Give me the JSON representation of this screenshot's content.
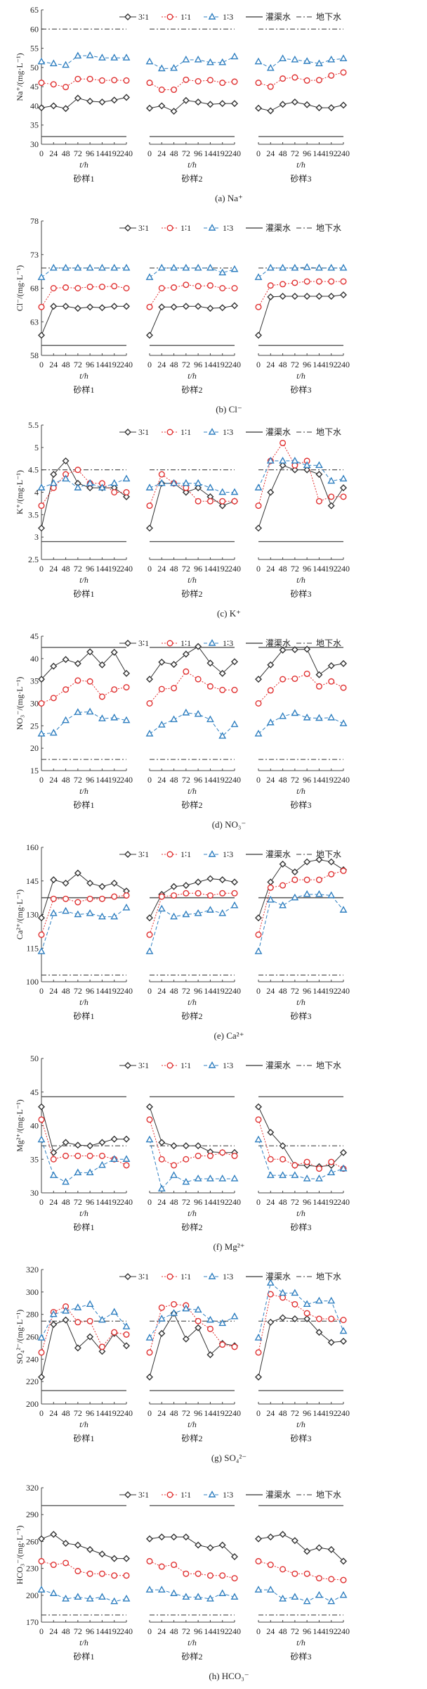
{
  "chart_data": {
    "type": "line",
    "legend": {
      "placement": "top",
      "entries": [
        "3∶1",
        "1∶1",
        "1∶3",
        "灌渠水",
        "地下水"
      ]
    },
    "groups": [
      "砂样1",
      "砂样2",
      "砂样3"
    ],
    "xlabel": "t/h",
    "x_categories": [
      "0",
      "24",
      "48",
      "72",
      "96",
      "144",
      "192",
      "240"
    ],
    "series_colors": {
      "3:1": "#333333",
      "1:1": "#e03030",
      "1:3": "#2f7fc0",
      "irrigation": "#555555",
      "groundwater": "#333333"
    },
    "panels": [
      {
        "caption": "(a) Na⁺",
        "ylabel": "Na⁺/(mg·L⁻¹)",
        "ylim": [
          30,
          65
        ],
        "yticks": [
          30,
          35,
          40,
          45,
          50,
          55,
          60,
          65
        ],
        "irrigation": 32,
        "groundwater": 60,
        "series": [
          [
            [
              39.5,
              40,
              39.3,
              42,
              41.2,
              41,
              41.5,
              42.2
            ],
            [
              39.4,
              40,
              38.6,
              41.4,
              41,
              40.4,
              40.6,
              40.6
            ],
            [
              39.4,
              38.7,
              40.4,
              41,
              40.3,
              39.5,
              39.5,
              40.2
            ]
          ],
          [
            [
              46,
              45.6,
              44.9,
              47,
              47,
              46.6,
              46.7,
              46.6
            ],
            [
              46,
              44.2,
              44.2,
              46.8,
              46.4,
              46.7,
              46,
              46.3
            ],
            [
              46,
              45,
              47.1,
              47.4,
              46.6,
              46.7,
              47.9,
              48.7
            ]
          ],
          [
            [
              51.5,
              51,
              50.6,
              53,
              53.1,
              52.5,
              52.5,
              52.5
            ],
            [
              51.5,
              49.7,
              49.8,
              52,
              52,
              51.3,
              51.3,
              52.8
            ],
            [
              51.5,
              49.8,
              52.3,
              52,
              51.6,
              51,
              52,
              52.3
            ]
          ]
        ]
      },
      {
        "caption": "(b) Cl⁻",
        "ylabel": "Cl⁻/(mg·L⁻¹)",
        "ylim": [
          58,
          78
        ],
        "yticks": [
          58,
          63,
          68,
          73,
          78
        ],
        "irrigation": 59.5,
        "groundwater": 71,
        "series": [
          [
            [
              61,
              65.3,
              65.3,
              65,
              65.2,
              65.1,
              65.3,
              65.3
            ],
            [
              61,
              65.2,
              65.2,
              65.3,
              65.3,
              65,
              65.1,
              65.4
            ],
            [
              61,
              66.7,
              66.8,
              66.8,
              66.8,
              66.8,
              66.8,
              67
            ]
          ],
          [
            [
              65.2,
              68,
              68.1,
              68,
              68.2,
              68.2,
              68.3,
              68
            ],
            [
              65.2,
              68,
              68.1,
              68.5,
              68.3,
              68.4,
              68,
              68
            ],
            [
              65.2,
              68.4,
              68.6,
              68.8,
              69,
              69,
              69,
              69
            ]
          ],
          [
            [
              69.6,
              71,
              71,
              71,
              71,
              71,
              71,
              71
            ],
            [
              69.6,
              71,
              71,
              71,
              71,
              71,
              70.3,
              70.8
            ],
            [
              69.6,
              71,
              71,
              71,
              71.1,
              71,
              71,
              71
            ]
          ]
        ]
      },
      {
        "caption": "(c) K⁺",
        "ylabel": "K⁺/(mg·L⁻¹)",
        "ylim": [
          2.5,
          5.5
        ],
        "yticks": [
          2.5,
          3.0,
          3.5,
          4.0,
          4.5,
          5.0,
          5.5
        ],
        "irrigation": 2.9,
        "groundwater": 4.5,
        "series": [
          [
            [
              3.2,
              4.4,
              4.7,
              4.2,
              4.1,
              4.1,
              4.1,
              3.9
            ],
            [
              3.2,
              4.2,
              4.2,
              4.0,
              4.1,
              3.9,
              3.7,
              3.8
            ],
            [
              3.2,
              4.0,
              4.6,
              4.5,
              4.5,
              4.4,
              3.7,
              4.1
            ]
          ],
          [
            [
              3.7,
              4.1,
              4.4,
              4.5,
              4.2,
              4.2,
              4.0,
              4.0
            ],
            [
              3.7,
              4.4,
              4.2,
              4.1,
              3.8,
              3.8,
              3.8,
              3.8
            ],
            [
              3.7,
              4.7,
              5.1,
              4.6,
              4.7,
              3.8,
              3.9,
              3.9
            ]
          ],
          [
            [
              4.1,
              4.2,
              4.3,
              4.1,
              4.2,
              4.1,
              4.2,
              4.3
            ],
            [
              4.1,
              4.2,
              4.2,
              4.2,
              4.2,
              4.1,
              4.0,
              4.0
            ],
            [
              4.1,
              4.7,
              4.7,
              4.7,
              4.6,
              4.6,
              4.25,
              4.3
            ]
          ]
        ]
      },
      {
        "caption": "(d) NO₃⁻",
        "ylabel": "NO₃⁻/(mg·L⁻¹)",
        "ylim": [
          15,
          45
        ],
        "yticks": [
          15,
          20,
          25,
          30,
          35,
          40,
          45
        ],
        "irrigation": 42.5,
        "groundwater": 17.5,
        "series": [
          [
            [
              35.4,
              38.3,
              39.8,
              38.9,
              41.5,
              38.6,
              41.4,
              36.7
            ],
            [
              35.4,
              39.2,
              38.7,
              41,
              42.7,
              39,
              36.7,
              39.3
            ],
            [
              35.4,
              38.6,
              41.9,
              42,
              42.1,
              36.4,
              38.4,
              38.9
            ]
          ],
          [
            [
              30,
              31.2,
              33.1,
              35.1,
              34.9,
              31.5,
              33.1,
              33.6
            ],
            [
              30,
              33.2,
              33.4,
              37.1,
              35.4,
              33.8,
              33,
              33
            ],
            [
              30,
              32.9,
              35.4,
              35.5,
              36.6,
              33.8,
              34.9,
              33.5
            ]
          ],
          [
            [
              23.2,
              23.4,
              26.2,
              28,
              28.1,
              26.6,
              26.8,
              26.2
            ],
            [
              23.2,
              25.2,
              26.4,
              27.9,
              27.6,
              26.4,
              22.7,
              25.3
            ],
            [
              23.2,
              25.7,
              27.1,
              27.8,
              26.8,
              26.7,
              26.8,
              25.5
            ]
          ]
        ]
      },
      {
        "caption": "(e) Ca²⁺",
        "ylabel": "Ca²⁺/(mg·L⁻¹)",
        "ylim": [
          100,
          160
        ],
        "yticks": [
          100,
          115,
          130,
          145,
          160
        ],
        "irrigation": 137.5,
        "groundwater": 103,
        "series": [
          [
            [
              128.5,
              145.5,
              144,
              148.5,
              144,
              142.5,
              144,
              140.5
            ],
            [
              128.5,
              139,
              142.5,
              143,
              144.5,
              146,
              145.5,
              144.5
            ],
            [
              128.5,
              144.5,
              152.5,
              149,
              153.5,
              154.5,
              153.5,
              150
            ]
          ],
          [
            [
              121,
              137,
              137,
              135.5,
              137,
              137,
              138,
              138.5
            ],
            [
              121,
              138,
              138.5,
              139.5,
              139.5,
              138.5,
              139.5,
              139.5
            ],
            [
              121,
              142,
              143,
              145.5,
              145.5,
              145.5,
              148,
              149.5
            ]
          ],
          [
            [
              113.5,
              130.5,
              131.5,
              130,
              130.5,
              129,
              129,
              133
            ],
            [
              113.5,
              132.5,
              129,
              130,
              130.5,
              132,
              130.5,
              134
            ],
            [
              113.5,
              136.5,
              134,
              137.5,
              139,
              139,
              138.5,
              132
            ]
          ]
        ]
      },
      {
        "caption": "(f) Mg²⁺",
        "ylabel": "Mg²⁺/(mg·L⁻¹)",
        "ylim": [
          30,
          50
        ],
        "yticks": [
          30,
          35,
          40,
          45,
          50
        ],
        "irrigation": 44.3,
        "groundwater": 37,
        "series": [
          [
            [
              42.8,
              36,
              37.5,
              37.1,
              37,
              37.5,
              38,
              38
            ],
            [
              42.8,
              37.5,
              37,
              37,
              37,
              36.1,
              36,
              36
            ],
            [
              42.8,
              39,
              37,
              34.1,
              34.1,
              33.9,
              34.1,
              36
            ]
          ],
          [
            [
              40.9,
              35,
              35.5,
              35.5,
              35.5,
              35.5,
              35,
              34.1
            ],
            [
              40.9,
              35,
              34.1,
              35,
              35.5,
              35.5,
              36,
              35.5
            ],
            [
              40.9,
              35,
              35,
              34.1,
              34.6,
              33.6,
              34.6,
              33.6
            ]
          ],
          [
            [
              37.9,
              32.6,
              31.6,
              33,
              33,
              34.1,
              35,
              35
            ],
            [
              37.9,
              30.6,
              32.6,
              31.6,
              32.1,
              32.1,
              32.1,
              32.1
            ],
            [
              37.9,
              32.6,
              32.6,
              32.6,
              32.1,
              32.1,
              33,
              33.6
            ]
          ]
        ]
      },
      {
        "caption": "(g) SO₄²⁻",
        "ylabel": "SO₄²⁻/(mg·L⁻¹)",
        "ylim": [
          200,
          320
        ],
        "yticks": [
          200,
          220,
          240,
          260,
          280,
          300,
          320
        ],
        "irrigation": 212,
        "groundwater": 274,
        "series": [
          [
            [
              224,
              271,
              275,
              250,
              260,
              247,
              263,
              252
            ],
            [
              224,
              263,
              281,
              258,
              268,
              244,
              254,
              252
            ],
            [
              224,
              273,
              277,
              276,
              276,
              264,
              255,
              256
            ]
          ],
          [
            [
              246,
              282,
              287,
              273,
              274,
              251,
              264,
              262
            ],
            [
              246,
              286,
              289,
              288,
              274,
              267,
              253,
              251
            ],
            [
              246,
              298,
              295,
              289,
              281,
              276,
              276,
              275
            ]
          ],
          [
            [
              259,
              280,
              283,
              286,
              289,
              275,
              282,
              269
            ],
            [
              259,
              276,
              281,
              285,
              284,
              275,
              272,
              278
            ],
            [
              259,
              308,
              299,
              299,
              289,
              292,
              292,
              265
            ]
          ]
        ]
      },
      {
        "caption": "(h) HCO₃⁻",
        "ylabel": "HCO₃⁻/(mg·L⁻¹)",
        "ylim": [
          170,
          320
        ],
        "yticks": [
          170,
          200,
          230,
          260,
          290,
          320
        ],
        "irrigation": 300,
        "groundwater": 178,
        "series": [
          [
            [
              263,
              268,
              258,
              256,
              251,
              246,
              241,
              241
            ],
            [
              263,
              265,
              265,
              265,
              256,
              253,
              256,
              243
            ],
            [
              263,
              265,
              268,
              261,
              249,
              253,
              251,
              238
            ]
          ],
          [
            [
              238,
              234,
              236,
              227,
              224,
              224,
              222,
              222
            ],
            [
              238,
              232,
              234,
              224,
              224,
              222,
              222,
              219
            ],
            [
              238,
              234,
              229,
              224,
              224,
              219,
              218,
              217
            ]
          ],
          [
            [
              206,
              202,
              196,
              198,
              196,
              198,
              193,
              196
            ],
            [
              206,
              206,
              202,
              198,
              198,
              196,
              202,
              198
            ],
            [
              206,
              206,
              196,
              198,
              193,
              200,
              193,
              200
            ]
          ]
        ]
      }
    ]
  }
}
